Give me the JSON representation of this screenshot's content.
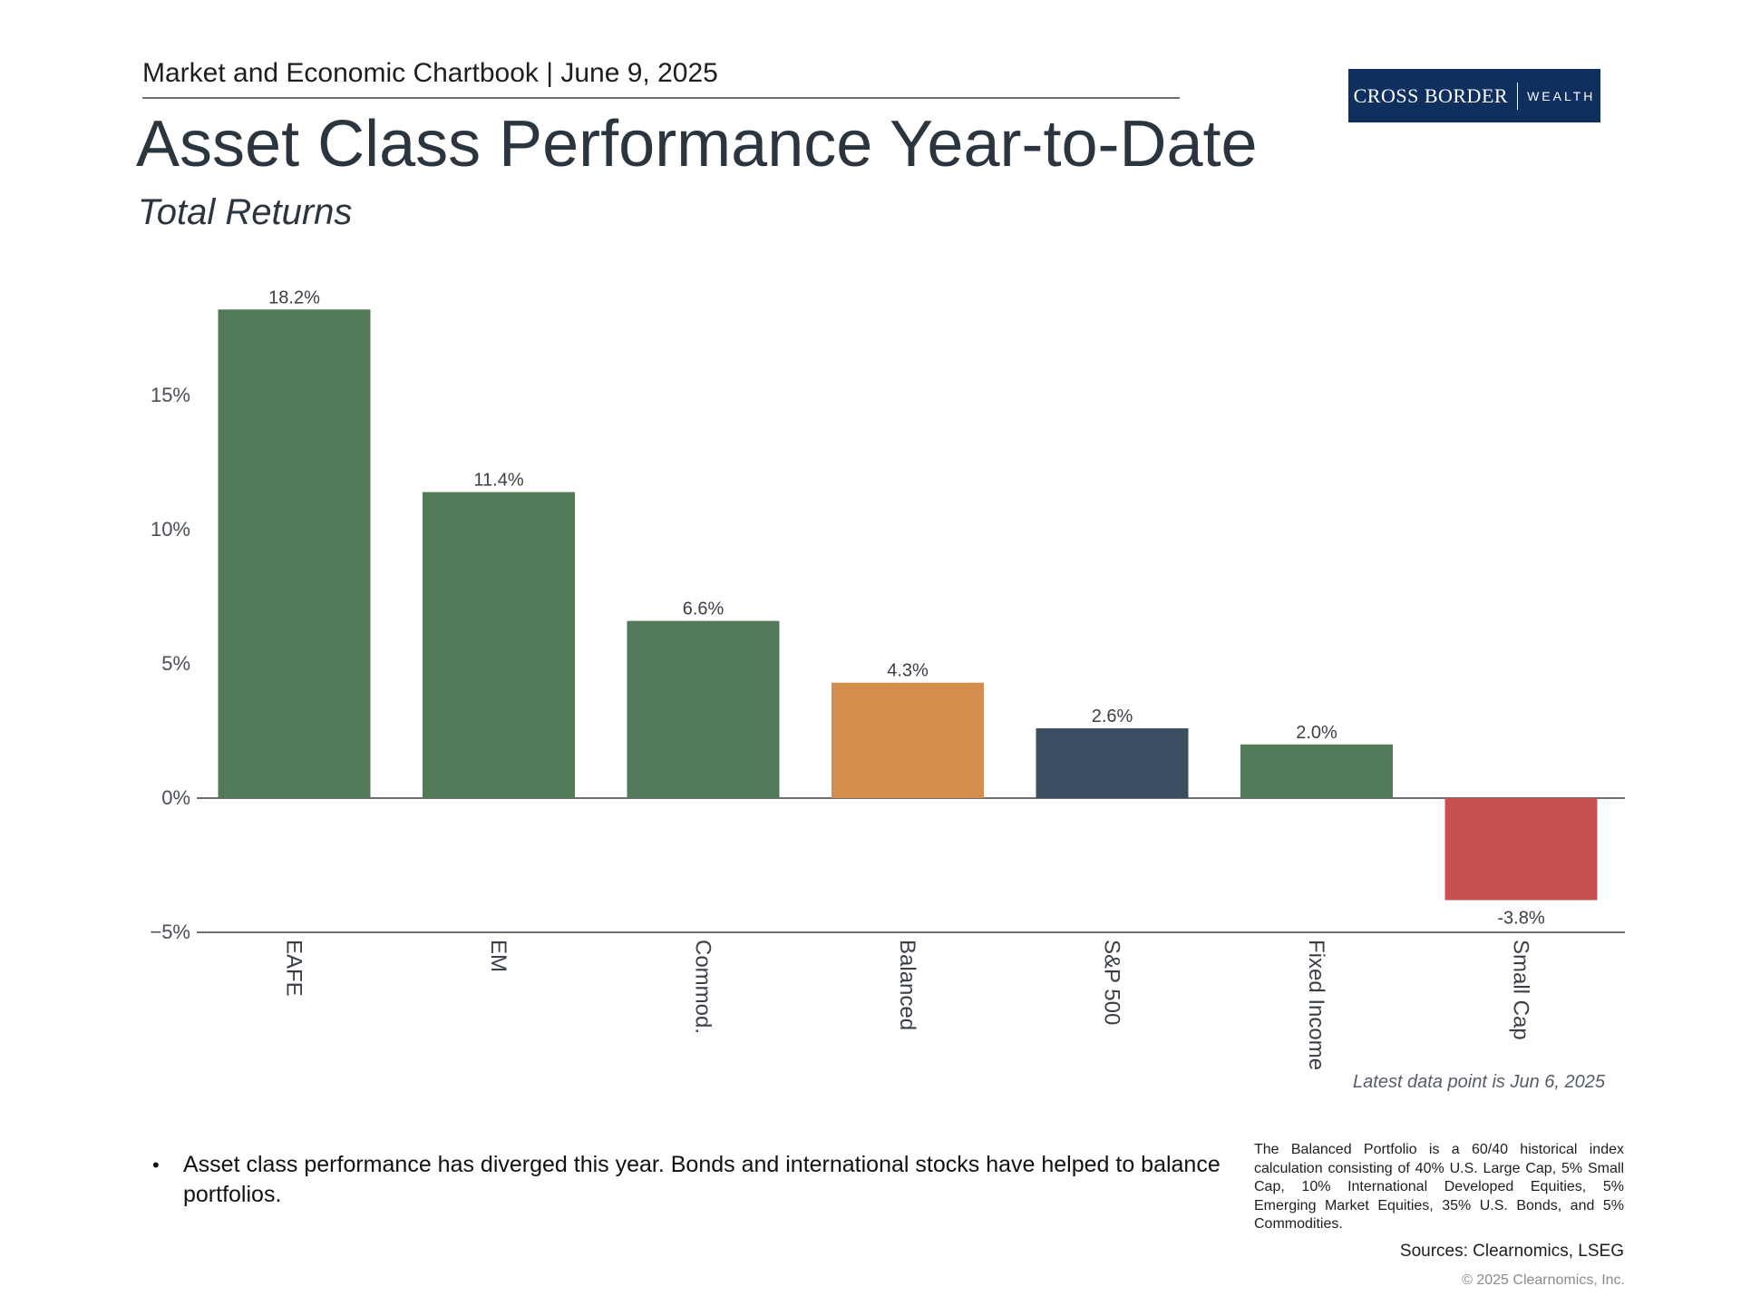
{
  "header": {
    "publication": "Market and Economic Chartbook | June 9, 2025",
    "logo_brand": "CROSS BORDER",
    "logo_sub": "WEALTH",
    "title": "Asset Class Performance Year-to-Date",
    "subtitle": "Total Returns"
  },
  "chart_data": {
    "type": "bar",
    "title": "Asset Class Performance Year-to-Date",
    "subtitle": "Total Returns",
    "categories": [
      "EAFE",
      "EM",
      "Commod.",
      "Balanced",
      "S&P 500",
      "Fixed Income",
      "Small Cap"
    ],
    "values": [
      18.2,
      11.4,
      6.6,
      4.3,
      2.6,
      2.0,
      -3.8
    ],
    "value_labels": [
      "18.2%",
      "11.4%",
      "6.6%",
      "4.3%",
      "2.6%",
      "2.0%",
      "-3.8%"
    ],
    "bar_colors": [
      "#527a58",
      "#527a58",
      "#527a58",
      "#d48e4e",
      "#3b4f62",
      "#527a58",
      "#c75050"
    ],
    "yticks": [
      -5,
      0,
      5,
      10,
      15
    ],
    "ytick_labels": [
      "−5%",
      "0%",
      "5%",
      "10%",
      "15%"
    ],
    "ylim": [
      -5,
      20
    ],
    "xlabel": "",
    "ylabel": "",
    "grid": false,
    "legend": "none",
    "note": "Latest data point is Jun 6, 2025"
  },
  "commentary": {
    "bullet": "Asset class performance has diverged this year. Bonds and international stocks have helped to balance portfolios."
  },
  "footer": {
    "footnote": "The Balanced Portfolio is a 60/40 historical index calculation consisting of 40% U.S. Large Cap, 5% Small Cap, 10% International Developed Equities, 5% Emerging Market Equities, 35% U.S. Bonds, and 5% Commodities.",
    "sources": "Sources: Clearnomics, LSEG",
    "copyright": "© 2025 Clearnomics, Inc."
  }
}
